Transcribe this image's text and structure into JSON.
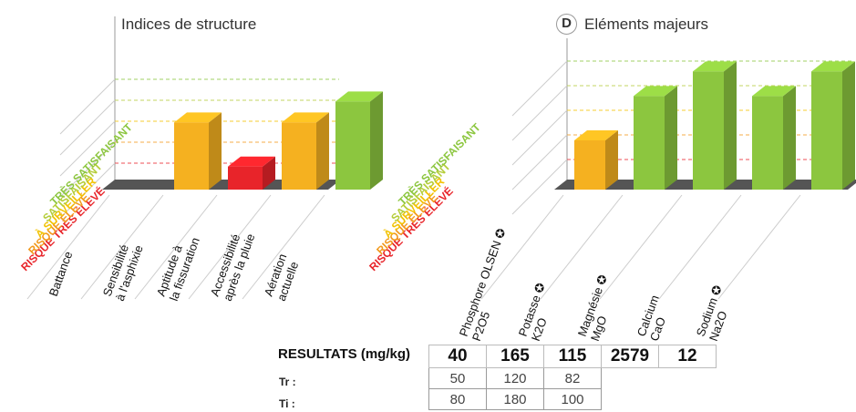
{
  "colors": {
    "orange": "#f5b120",
    "red": "#e8242a",
    "green": "#8cc63f",
    "base": "#555555",
    "risque_tres_eleve": "#e8242a",
    "risque_eleve": "#f29a1e",
    "a_surveiller": "#f2c200",
    "satisfaisant": "#b5cd3a",
    "tres_satisfaisant": "#8cc63f"
  },
  "levels": [
    "RISQUE TRÈS ÉLEVÉ",
    "RISQUE ÉLEVÉ",
    "À SURVEILLER",
    "SATISFAISANT",
    "TRÈS SATISFAISANT"
  ],
  "chart_data": [
    {
      "type": "bar",
      "title": "Indices de structure",
      "categories": [
        "Battance",
        "Sensibilité\nà l'asphixie",
        "Aptitude à\nla fissuration",
        "Accessibilité\naprès la pluie",
        "Aération\nactuelle"
      ],
      "values": [
        null,
        3.2,
        1.1,
        3.2,
        4.2
      ],
      "status": [
        "none",
        "orange",
        "red",
        "orange",
        "green"
      ],
      "scale": "RISQUE TRÈS ÉLEVÉ to TRÈS SATISFAISANT"
    },
    {
      "type": "bar",
      "title": "Eléments majeurs",
      "badge": "D",
      "categories": [
        "Phosphore OLSEN ✪\nP2O5",
        "Potasse ✪\nK2O",
        "Magnésie ✪\nMgO",
        "Calcium\nCaO",
        "Sodium ✪\nNa2O"
      ],
      "values": [
        2.0,
        3.8,
        4.8,
        3.8,
        4.8
      ],
      "status": [
        "orange",
        "green",
        "green",
        "green",
        "green"
      ],
      "scale": "RISQUE TRÈS ÉLEVÉ to TRÈS SATISFAISANT"
    }
  ],
  "results": {
    "label": "RESULTATS (mg/kg)",
    "values": [
      "40",
      "165",
      "115",
      "2579",
      "12"
    ],
    "tr_label": "Tr :",
    "tr": [
      "50",
      "120",
      "82"
    ],
    "ti_label": "Ti :",
    "ti": [
      "80",
      "180",
      "100"
    ]
  }
}
